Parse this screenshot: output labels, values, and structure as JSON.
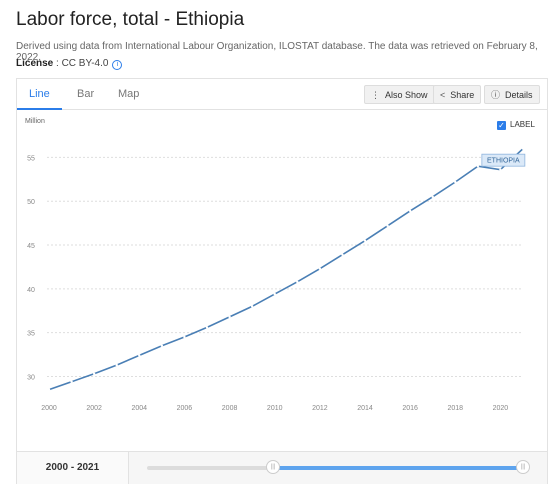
{
  "header": {
    "title": "Labor force, total - Ethiopia",
    "description": "Derived using data from International Labour Organization, ILOSTAT database. The data was retrieved on February 8, 2022.",
    "license_label": "License",
    "license_value": " : CC BY-4.0"
  },
  "tabs": [
    {
      "label": "Line"
    },
    {
      "label": "Bar"
    },
    {
      "label": "Map"
    }
  ],
  "toolbar": {
    "also_show": "Also Show",
    "share": "Share",
    "details": "Details"
  },
  "legend_label": "LABEL",
  "colors": {
    "accent": "#2b7de9",
    "line": "#4a7fb5"
  },
  "footer": {
    "range_start": "2000",
    "range_sep": " - ",
    "range_end": "2021"
  },
  "chart_data": {
    "type": "line",
    "ylabel": "Million",
    "x": [
      2000,
      2001,
      2002,
      2003,
      2004,
      2005,
      2006,
      2007,
      2008,
      2009,
      2010,
      2011,
      2012,
      2013,
      2014,
      2015,
      2016,
      2017,
      2018,
      2019,
      2020,
      2021
    ],
    "series": [
      {
        "name": "ETHIOPIA",
        "values": [
          28.5,
          29.4,
          30.3,
          31.3,
          32.4,
          33.5,
          34.5,
          35.6,
          36.8,
          38.0,
          39.4,
          40.8,
          42.3,
          43.9,
          45.5,
          47.2,
          48.9,
          50.5,
          52.2,
          54.0,
          53.6,
          56.0
        ]
      }
    ],
    "xticks": [
      2000,
      2002,
      2004,
      2006,
      2008,
      2010,
      2012,
      2014,
      2016,
      2018,
      2020
    ],
    "yticks": [
      30,
      35,
      40,
      45,
      50,
      55
    ],
    "xlim": [
      2000,
      2021
    ],
    "ylim": [
      27.2,
      58.7
    ],
    "grid": true,
    "legend": "top-right"
  }
}
